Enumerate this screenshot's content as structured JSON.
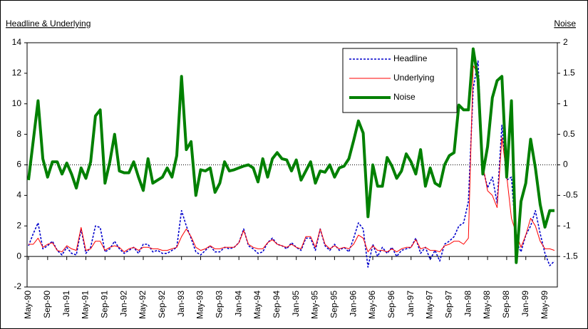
{
  "chart_data": {
    "type": "line",
    "title": "Headline & Underlying",
    "y2_title": "Noise",
    "categories": [
      "May-90",
      null,
      null,
      null,
      "Sep-90",
      null,
      null,
      null,
      "Jan-91",
      null,
      null,
      null,
      "May-91",
      null,
      null,
      null,
      "Sep-91",
      null,
      null,
      null,
      "Jan-92",
      null,
      null,
      null,
      "May-92",
      null,
      null,
      null,
      "Sep-92",
      null,
      null,
      null,
      "Jan-93",
      null,
      null,
      null,
      "May-93",
      null,
      null,
      null,
      "Sep-93",
      null,
      null,
      null,
      "Jan-94",
      null,
      null,
      null,
      "May-94",
      null,
      null,
      null,
      "Sep-94",
      null,
      null,
      null,
      "Jan-95",
      null,
      null,
      null,
      "May-95",
      null,
      null,
      null,
      "Sep-95",
      null,
      null,
      null,
      "Jan-96",
      null,
      null,
      null,
      "May-96",
      null,
      null,
      null,
      "Sep-96",
      null,
      null,
      null,
      "Jan-97",
      null,
      null,
      null,
      "May-97",
      null,
      null,
      null,
      "Sep-97",
      null,
      null,
      null,
      "Jan-98",
      null,
      null,
      null,
      "May-98",
      null,
      null,
      null,
      "Sep-98",
      null,
      null,
      null,
      "Jan-99",
      null,
      null,
      null,
      "May-99",
      null,
      null
    ],
    "series": [
      {
        "name": "Headline",
        "color": "#0000cc",
        "dash": "dotted",
        "values": [
          0.7,
          1.5,
          2.2,
          0.5,
          0.7,
          1.0,
          0.4,
          0.1,
          0.6,
          0.2,
          0.1,
          1.8,
          0.2,
          0.6,
          2.0,
          1.9,
          0.3,
          0.5,
          1.0,
          0.5,
          0.2,
          0.4,
          0.6,
          0.2,
          0.8,
          0.8,
          0.3,
          0.4,
          0.2,
          0.2,
          0.4,
          0.6,
          3.0,
          2.0,
          1.2,
          0.3,
          0.1,
          0.4,
          0.7,
          0.3,
          0.3,
          0.6,
          0.5,
          0.6,
          0.9,
          1.8,
          0.7,
          0.5,
          0.2,
          0.3,
          0.9,
          1.2,
          0.8,
          0.7,
          0.5,
          0.9,
          0.6,
          0.4,
          1.2,
          1.2,
          0.4,
          1.8,
          0.7,
          0.4,
          0.8,
          0.4,
          0.6,
          0.3,
          1.2,
          2.2,
          1.8,
          -0.7,
          0.8,
          0,
          0.6,
          0.2,
          0.6,
          0,
          0.4,
          0.5,
          0.6,
          1.2,
          0.2,
          0.6,
          -0.2,
          0.4,
          -0.3,
          0.8,
          1.0,
          1.3,
          2.0,
          2.2,
          3.6,
          11.0,
          12.8,
          5.8,
          4.5,
          5.2,
          3.5,
          8.6,
          5.0,
          5.2,
          1.0,
          0.3,
          1.4,
          2.0,
          3.0,
          1.5,
          0.2,
          -0.6,
          -0.3
        ]
      },
      {
        "name": "Underlying",
        "color": "#ff0000",
        "values": [
          0.8,
          0.8,
          1.2,
          0.6,
          0.8,
          0.9,
          0.4,
          0.3,
          0.7,
          0.5,
          0.4,
          1.9,
          0.4,
          0.5,
          1.0,
          1.0,
          0.4,
          0.6,
          0.7,
          0.6,
          0.3,
          0.5,
          0.6,
          0.4,
          0.6,
          0.6,
          0.5,
          0.5,
          0.4,
          0.4,
          0.5,
          0.6,
          1.3,
          1.8,
          1.3,
          0.6,
          0.4,
          0.5,
          0.7,
          0.5,
          0.5,
          0.6,
          0.6,
          0.6,
          0.9,
          1.7,
          0.8,
          0.6,
          0.5,
          0.5,
          0.9,
          1.1,
          0.8,
          0.7,
          0.6,
          0.8,
          0.6,
          0.5,
          1.3,
          1.3,
          0.6,
          1.8,
          0.8,
          0.5,
          0.7,
          0.5,
          0.6,
          0.5,
          0.8,
          1.4,
          1.2,
          0.3,
          0.7,
          0.4,
          0.4,
          0.3,
          0.5,
          0.3,
          0.5,
          0.6,
          0.6,
          1.1,
          0.5,
          0.6,
          0.4,
          0.4,
          0.3,
          0.7,
          0.8,
          1.0,
          1.0,
          0.8,
          1.2,
          12.5,
          12.0,
          6.0,
          4.3,
          4.0,
          3.2,
          7.8,
          5.3,
          2.5,
          1.5,
          0.6,
          1.4,
          2.5,
          2.0,
          1.0,
          0.5,
          0.5,
          0.4
        ]
      },
      {
        "name": "Noise",
        "color": "#008000",
        "axis": "y2",
        "values": [
          -0.25,
          0.4,
          1.05,
          0.1,
          -0.2,
          0.05,
          0.05,
          -0.15,
          0.03,
          -0.15,
          -0.38,
          -0.05,
          -0.22,
          0.05,
          0.8,
          0.9,
          -0.3,
          0.05,
          0.5,
          -0.1,
          -0.13,
          -0.13,
          0.05,
          -0.2,
          -0.42,
          0.1,
          -0.3,
          -0.25,
          -0.2,
          -0.05,
          -0.2,
          0.15,
          1.45,
          0.25,
          0.38,
          -0.5,
          -0.08,
          -0.1,
          -0.05,
          -0.45,
          -0.3,
          0.05,
          -0.1,
          -0.08,
          -0.05,
          -0.02,
          0,
          -0.05,
          -0.28,
          0.1,
          -0.2,
          0.1,
          0.2,
          0.1,
          0.08,
          -0.1,
          0.08,
          -0.25,
          -0.1,
          0.05,
          -0.3,
          -0.1,
          -0.12,
          0,
          -0.2,
          -0.05,
          -0.02,
          0.1,
          0.4,
          0.72,
          0.52,
          -0.85,
          0,
          -0.35,
          -0.35,
          0.12,
          -0.02,
          -0.22,
          -0.1,
          0.18,
          0.05,
          -0.15,
          0.25,
          -0.35,
          -0.05,
          -0.3,
          -0.35,
          0,
          0.15,
          0.2,
          0.98,
          0.9,
          0.9,
          1.9,
          1.4,
          -0.15,
          0.3,
          1.1,
          1.38,
          1.45,
          -0.2,
          1.05,
          -1.6,
          -0.6,
          -0.3,
          0.42,
          -0.05,
          -0.65,
          -1.02,
          -0.75,
          -0.75
        ]
      }
    ],
    "ylim": [
      -2,
      14
    ],
    "yticks": [
      -2,
      0,
      2,
      4,
      6,
      8,
      10,
      12,
      14
    ],
    "y2lim": [
      -2,
      2
    ],
    "y2ticks": [
      -1.5,
      -1,
      -0.5,
      0,
      0.5,
      1,
      1.5,
      2
    ],
    "legend": "top-right"
  }
}
